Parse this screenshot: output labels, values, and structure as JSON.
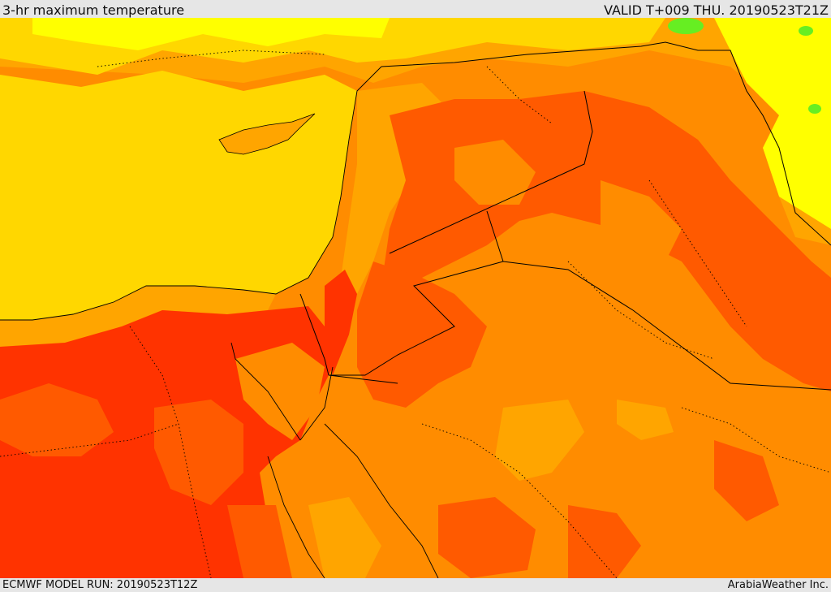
{
  "header": {
    "title": "3-hr maximum temperature",
    "valid": "VALID T+009 THU. 20190523T21Z"
  },
  "footer": {
    "model_run": "ECMWF MODEL RUN: 20190523T12Z",
    "credit": "ArabiaWeather Inc."
  },
  "colors": {
    "sea_yellow": "#ffd700",
    "light_yellow": "#ffff00",
    "amber": "#ffa500",
    "orange": "#ff8c00",
    "dark_orange": "#ff5a00",
    "red": "#ff3300",
    "green": "#66ee22",
    "border": "#000000"
  }
}
